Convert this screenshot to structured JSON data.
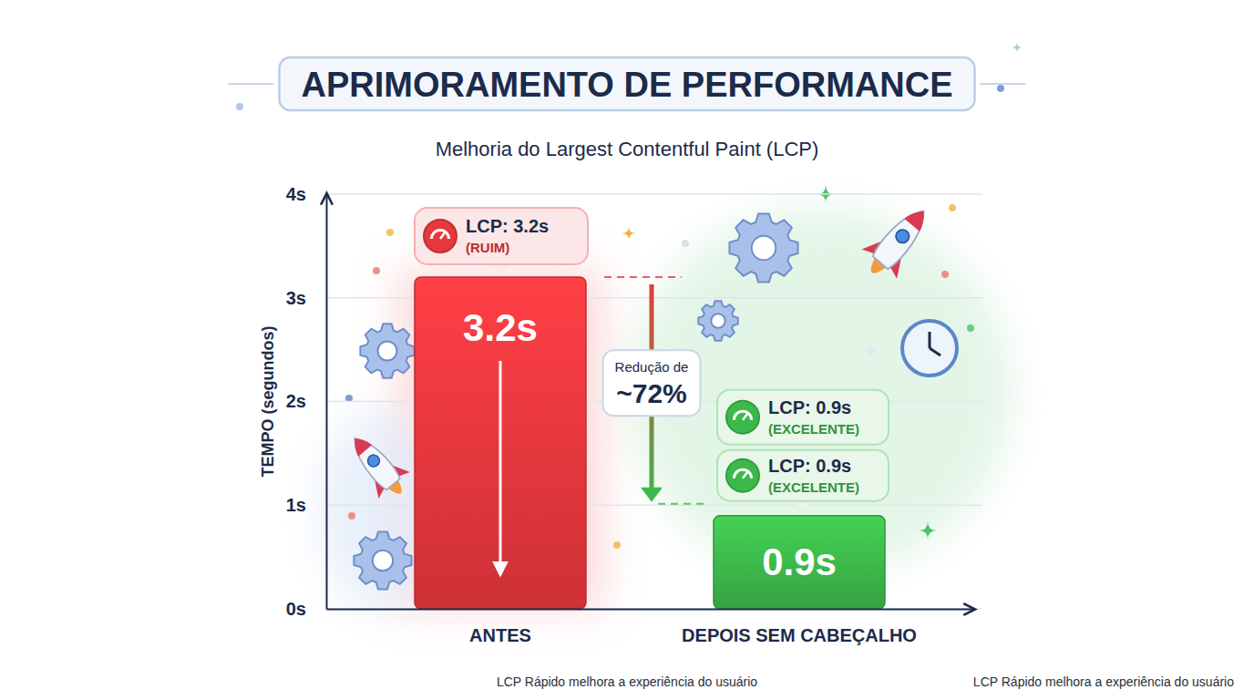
{
  "chart_data": {
    "type": "bar",
    "title": "APRIMORAMENTO DE PERFORMANCE",
    "subtitle": "Melhoria do Largest Contentful Paint (LCP)",
    "y_label": "TEMPO (segundos)",
    "categories": [
      "ANTES",
      "DEPOIS SEM CABEÇALHO"
    ],
    "values": [
      3.2,
      0.9
    ],
    "value_labels": [
      "3.2s",
      "0.9s"
    ],
    "colors": [
      "#e8383d",
      "#3cb94b"
    ],
    "data_labels": true,
    "ylim": [
      0,
      4
    ],
    "yticks": [
      {
        "value": 0,
        "label": "0s"
      },
      {
        "value": 1,
        "label": "1s"
      },
      {
        "value": 2,
        "label": "2s"
      },
      {
        "value": 3,
        "label": "3s"
      },
      {
        "value": 4,
        "label": "4s"
      }
    ],
    "grid": true,
    "annotations": [
      {
        "lines": [
          "LCP: 3.2s",
          "(RUIM)"
        ]
      },
      {
        "lines": [
          "Redução de",
          "~72%"
        ]
      },
      {
        "lines": [
          "LCP: 0.9s",
          "(EXCELENTE)"
        ]
      },
      {
        "lines": [
          "LCP: 0.9s",
          "(EXCELENTE)"
        ]
      }
    ],
    "footnotes": [
      "LCP Rápido melhora a experiência do usuário",
      "LCP Rápido melhora a experiência do usuário"
    ]
  }
}
